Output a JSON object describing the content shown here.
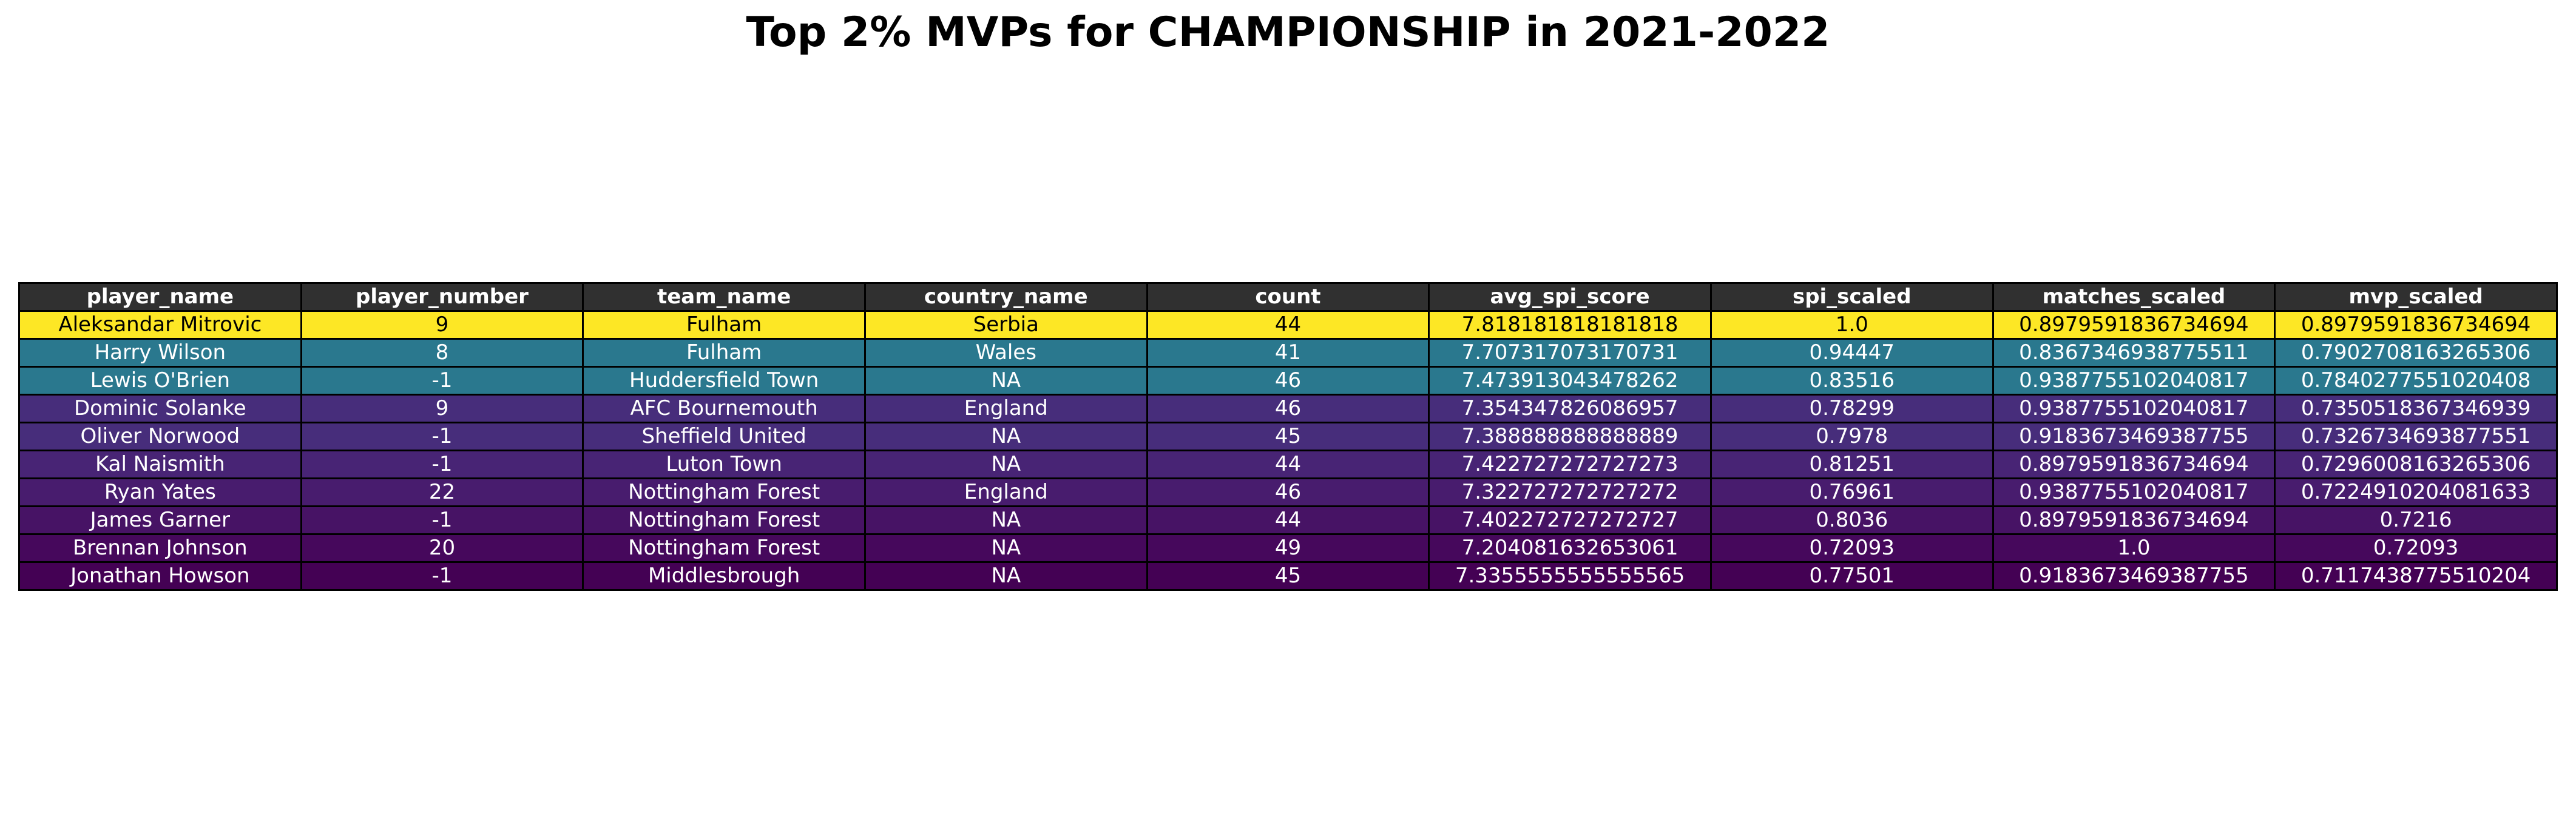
{
  "chart_data": {
    "type": "table",
    "title": "Top 2% MVPs for CHAMPIONSHIP in 2021-2022",
    "header_color": "#303030",
    "columns": [
      "player_name",
      "player_number",
      "team_name",
      "country_name",
      "count",
      "avg_spi_score",
      "spi_scaled",
      "matches_scaled",
      "mvp_scaled"
    ],
    "rows": [
      {
        "cells": [
          "Aleksandar Mitrovic",
          "9",
          "Fulham",
          "Serbia",
          "44",
          "7.818181818181818",
          "1.0",
          "0.8979591836734694",
          "0.8979591836734694"
        ],
        "bg": "#fde725",
        "fg": "#000000"
      },
      {
        "cells": [
          "Harry Wilson",
          "8",
          "Fulham",
          "Wales",
          "41",
          "7.707317073170731",
          "0.94447",
          "0.8367346938775511",
          "0.7902708163265306"
        ],
        "bg": "#2a788e",
        "fg": "#ffffff"
      },
      {
        "cells": [
          "Lewis O'Brien",
          "-1",
          "Huddersfield Town",
          "NA",
          "46",
          "7.473913043478262",
          "0.83516",
          "0.9387755102040817",
          "0.7840277551020408"
        ],
        "bg": "#2a788e",
        "fg": "#ffffff"
      },
      {
        "cells": [
          "Dominic Solanke",
          "9",
          "AFC Bournemouth",
          "England",
          "46",
          "7.354347826086957",
          "0.78299",
          "0.9387755102040817",
          "0.7350518367346939"
        ],
        "bg": "#472d7b",
        "fg": "#ffffff"
      },
      {
        "cells": [
          "Oliver Norwood",
          "-1",
          "Sheffield United",
          "NA",
          "45",
          "7.388888888888889",
          "0.7978",
          "0.9183673469387755",
          "0.7326734693877551"
        ],
        "bg": "#472d7b",
        "fg": "#ffffff"
      },
      {
        "cells": [
          "Kal Naismith",
          "-1",
          "Luton Town",
          "NA",
          "44",
          "7.422727272727273",
          "0.81251",
          "0.8979591836734694",
          "0.7296008163265306"
        ],
        "bg": "#482475",
        "fg": "#ffffff"
      },
      {
        "cells": [
          "Ryan Yates",
          "22",
          "Nottingham Forest",
          "England",
          "46",
          "7.322727272727272",
          "0.76961",
          "0.9387755102040817",
          "0.7224910204081633"
        ],
        "bg": "#481c6e",
        "fg": "#ffffff"
      },
      {
        "cells": [
          "James Garner",
          "-1",
          "Nottingham Forest",
          "NA",
          "44",
          "7.402272727272727",
          "0.8036",
          "0.8979591836734694",
          "0.7216"
        ],
        "bg": "#471365",
        "fg": "#ffffff"
      },
      {
        "cells": [
          "Brennan Johnson",
          "20",
          "Nottingham Forest",
          "NA",
          "49",
          "7.204081632653061",
          "0.72093",
          "1.0",
          "0.72093"
        ],
        "bg": "#46085c",
        "fg": "#ffffff"
      },
      {
        "cells": [
          "Jonathan Howson",
          "-1",
          "Middlesbrough",
          "NA",
          "45",
          "7.3355555555555565",
          "0.77501",
          "0.9183673469387755",
          "0.7117438775510204"
        ],
        "bg": "#440154",
        "fg": "#ffffff"
      }
    ]
  }
}
